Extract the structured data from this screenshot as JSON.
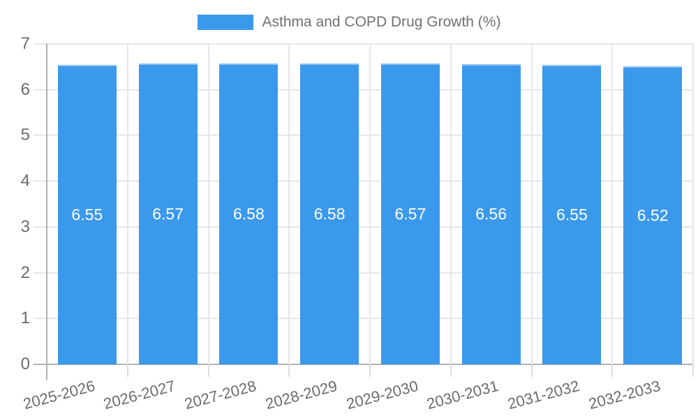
{
  "chart_data": {
    "type": "bar",
    "title": "",
    "legend_label": "Asthma and COPD Drug Growth (%)",
    "legend_position": "top",
    "categories": [
      "2025-2026",
      "2026-2027",
      "2027-2028",
      "2028-2029",
      "2029-2030",
      "2030-2031",
      "2031-2032",
      "2032-2033"
    ],
    "series": [
      {
        "name": "Asthma and COPD Drug Growth (%)",
        "values": [
          6.55,
          6.57,
          6.58,
          6.58,
          6.57,
          6.56,
          6.55,
          6.52
        ]
      }
    ],
    "value_labels": [
      "6.55",
      "6.57",
      "6.58",
      "6.58",
      "6.57",
      "6.56",
      "6.55",
      "6.52"
    ],
    "xlabel": "",
    "ylabel": "",
    "ylim": [
      0,
      7
    ],
    "yticks": [
      "0",
      "1",
      "2",
      "3",
      "4",
      "5",
      "6",
      "7"
    ],
    "grid": true,
    "colors": {
      "bar": "#3b99eb",
      "bar_edge": "#9cc8f2",
      "grid": "#e6e6e6",
      "axis": "#b1b1b1",
      "bottom_tick": "#dcdcdc",
      "text": "#6b6b6b",
      "value_label": "#ffffff",
      "background": "#ffffff"
    }
  }
}
